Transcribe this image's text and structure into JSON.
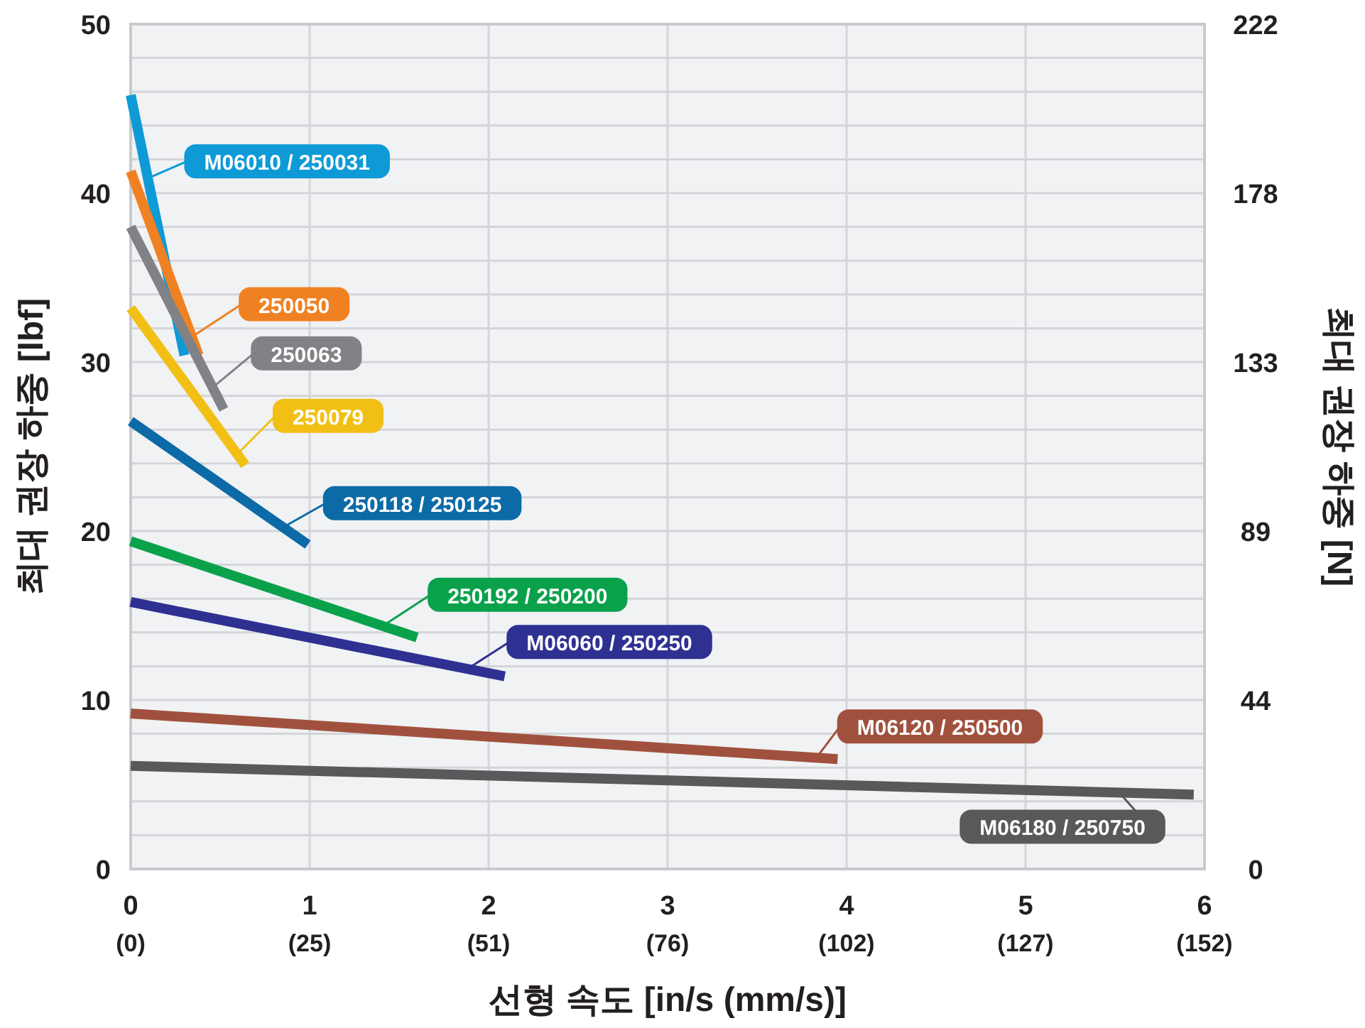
{
  "chart_data": {
    "type": "line",
    "xlabel": "선형 속도 [in/s (mm/s)]",
    "ylabel": "최대 권장 하중 [lbf]",
    "y2label": "최대 권장 하중 [N]",
    "xlim": [
      0,
      6
    ],
    "ylim": [
      0,
      50
    ],
    "y2lim": [
      0,
      222.4
    ],
    "xticks": [
      0,
      1,
      2,
      3,
      4,
      5,
      6
    ],
    "x2lim": [
      0,
      152.4
    ],
    "x2ticks": [
      {
        "value": 0,
        "label": "(0)"
      },
      {
        "value": 25.4,
        "label": "(25)"
      },
      {
        "value": 50.8,
        "label": "(51)"
      },
      {
        "value": 76.2,
        "label": "(76)"
      },
      {
        "value": 101.6,
        "label": "(102)"
      },
      {
        "value": 127,
        "label": "(127)"
      },
      {
        "value": 152.4,
        "label": "(152)"
      }
    ],
    "yticks": [
      0,
      10,
      20,
      30,
      40,
      50
    ],
    "y2ticks": [
      {
        "value": 0,
        "label": "0"
      },
      {
        "value": 44.48,
        "label": "44"
      },
      {
        "value": 88.96,
        "label": "89"
      },
      {
        "value": 133.44,
        "label": "133"
      },
      {
        "value": 177.92,
        "label": "178"
      },
      {
        "value": 222.4,
        "label": "222"
      }
    ],
    "grid": true,
    "legend": "bottom left",
    "marker": "none",
    "line_style": "solid",
    "series": [
      {
        "name": "M06010 / 250031",
        "color": "#0e9ad7",
        "x": [
          0,
          0.3
        ],
        "values": [
          45.8,
          30.4
        ]
      },
      {
        "name": "250050",
        "color": "#f08122",
        "x": [
          0,
          0.38
        ],
        "values": [
          41.3,
          30.4
        ]
      },
      {
        "name": "250063",
        "color": "#808285",
        "x": [
          0,
          0.52
        ],
        "values": [
          38.0,
          27.2
        ]
      },
      {
        "name": "250079",
        "color": "#f2c015",
        "x": [
          0,
          0.64
        ],
        "values": [
          33.2,
          23.9
        ]
      },
      {
        "name": "250118 / 250125",
        "color": "#0c6aa6",
        "x": [
          0,
          0.99
        ],
        "values": [
          26.5,
          19.2
        ]
      },
      {
        "name": "250192 / 250200",
        "color": "#0aa14b",
        "x": [
          0,
          1.6
        ],
        "values": [
          19.4,
          13.7
        ]
      },
      {
        "name": "M06060 / 250250",
        "color": "#2e3192",
        "x": [
          0,
          2.09
        ],
        "values": [
          15.8,
          11.4
        ]
      },
      {
        "name": "M06120 / 250500",
        "color": "#a0513d",
        "x": [
          0,
          3.95
        ],
        "values": [
          9.2,
          6.5
        ]
      },
      {
        "name": "M06180 / 250750",
        "color": "#58595b",
        "x": [
          0,
          5.94
        ],
        "values": [
          6.1,
          4.4
        ]
      }
    ]
  }
}
